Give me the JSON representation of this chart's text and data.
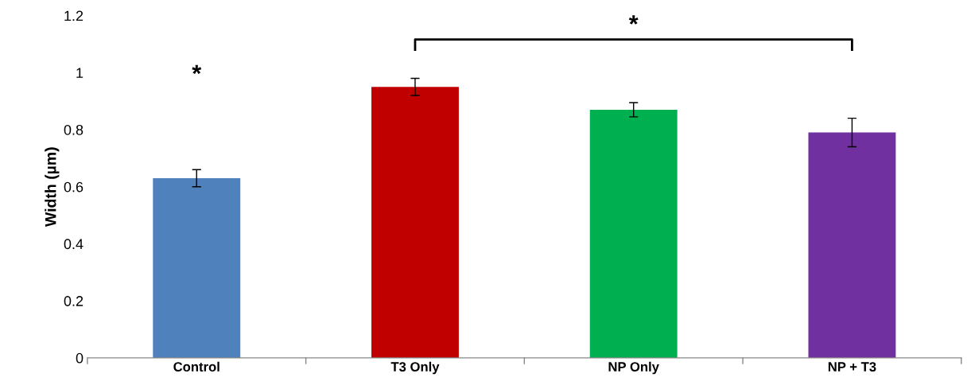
{
  "chart_data": {
    "type": "bar",
    "ylabel": "Width (µm)",
    "categories": [
      "Control",
      "T3 Only",
      "NP Only",
      "NP + T3"
    ],
    "values": [
      0.63,
      0.95,
      0.87,
      0.79
    ],
    "errors": [
      0.03,
      0.03,
      0.025,
      0.05
    ],
    "colors": [
      "#4f81bd",
      "#c00000",
      "#00b050",
      "#7030a0"
    ],
    "ylim": [
      0,
      1.2
    ],
    "yticks": [
      0,
      0.2,
      0.4,
      0.6,
      0.8,
      1,
      1.2
    ],
    "annotations": [
      "*",
      "*"
    ],
    "grid": false,
    "legend": false
  }
}
